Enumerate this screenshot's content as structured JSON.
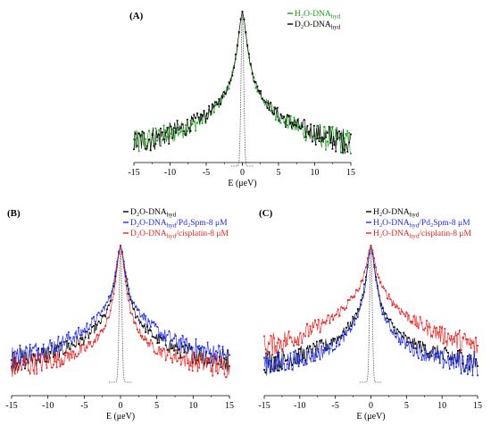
{
  "colors": {
    "black": "#000000",
    "green": "#1a9e1a",
    "blue": "#1f2be8",
    "red": "#e8231f",
    "resolution": "#555555"
  },
  "chart_data": [
    {
      "type": "scatter",
      "panel_label": "(A)",
      "xlabel": "E (μeV)",
      "ylabel": "",
      "xlim": [
        -15,
        15
      ],
      "x_ticks": [
        -15,
        -10,
        -5,
        0,
        5,
        10,
        15
      ],
      "x_tick_labels": [
        "-15",
        "-10",
        "-5",
        "0",
        "5",
        "10",
        "15"
      ],
      "grid": false,
      "legend_position": "top-right",
      "series": [
        {
          "name_main": "H₂O-DNA",
          "name_sub": "hyd",
          "color_key": "green",
          "points": [
            [
              -15,
              0.105
            ],
            [
              -12,
              0.135
            ],
            [
              -10,
              0.165
            ],
            [
              -8,
              0.205
            ],
            [
              -6,
              0.255
            ],
            [
              -5,
              0.29
            ],
            [
              -4,
              0.335
            ],
            [
              -3,
              0.395
            ],
            [
              -2,
              0.48
            ],
            [
              -1.5,
              0.55
            ],
            [
              -1,
              0.66
            ],
            [
              -0.7,
              0.76
            ],
            [
              -0.4,
              0.88
            ],
            [
              -0.2,
              0.96
            ],
            [
              0,
              1.0
            ],
            [
              0.2,
              0.96
            ],
            [
              0.4,
              0.88
            ],
            [
              0.7,
              0.76
            ],
            [
              1,
              0.66
            ],
            [
              1.5,
              0.55
            ],
            [
              2,
              0.48
            ],
            [
              3,
              0.395
            ],
            [
              4,
              0.335
            ],
            [
              5,
              0.29
            ],
            [
              6,
              0.255
            ],
            [
              8,
              0.205
            ],
            [
              10,
              0.165
            ],
            [
              12,
              0.135
            ],
            [
              15,
              0.105
            ]
          ]
        },
        {
          "name_main": "D₂O-DNA",
          "name_sub": "hyd",
          "color_key": "black",
          "points": [
            [
              -15,
              0.115
            ],
            [
              -12,
              0.145
            ],
            [
              -10,
              0.175
            ],
            [
              -8,
              0.215
            ],
            [
              -6,
              0.265
            ],
            [
              -5,
              0.3
            ],
            [
              -4,
              0.345
            ],
            [
              -3,
              0.405
            ],
            [
              -2,
              0.49
            ],
            [
              -1.5,
              0.56
            ],
            [
              -1,
              0.67
            ],
            [
              -0.7,
              0.77
            ],
            [
              -0.4,
              0.885
            ],
            [
              -0.2,
              0.96
            ],
            [
              0,
              1.0
            ],
            [
              0.2,
              0.96
            ],
            [
              0.4,
              0.885
            ],
            [
              0.7,
              0.77
            ],
            [
              1,
              0.67
            ],
            [
              1.5,
              0.56
            ],
            [
              2,
              0.49
            ],
            [
              3,
              0.405
            ],
            [
              4,
              0.345
            ],
            [
              5,
              0.3
            ],
            [
              6,
              0.265
            ],
            [
              8,
              0.215
            ],
            [
              10,
              0.175
            ],
            [
              12,
              0.145
            ],
            [
              15,
              0.115
            ]
          ]
        }
      ]
    },
    {
      "type": "scatter",
      "panel_label": "(B)",
      "xlabel": "E (μeV)",
      "ylabel": "",
      "xlim": [
        -15,
        15
      ],
      "x_ticks": [
        -15,
        -10,
        -5,
        0,
        5,
        10,
        15
      ],
      "x_tick_labels": [
        "-15",
        "-10",
        "-5",
        "0",
        "5",
        "10",
        "15"
      ],
      "grid": false,
      "legend_position": "top-right",
      "series": [
        {
          "name_main": "D₂O-DNA",
          "name_sub": "hyd",
          "name_rest": "",
          "color_key": "black",
          "points": [
            [
              -15,
              0.11
            ],
            [
              -12,
              0.14
            ],
            [
              -10,
              0.165
            ],
            [
              -8,
              0.2
            ],
            [
              -6,
              0.25
            ],
            [
              -5,
              0.285
            ],
            [
              -4,
              0.33
            ],
            [
              -3,
              0.39
            ],
            [
              -2,
              0.475
            ],
            [
              -1.5,
              0.55
            ],
            [
              -1,
              0.66
            ],
            [
              -0.7,
              0.76
            ],
            [
              -0.4,
              0.88
            ],
            [
              -0.2,
              0.96
            ],
            [
              0,
              1.0
            ],
            [
              0.2,
              0.96
            ],
            [
              0.4,
              0.88
            ],
            [
              0.7,
              0.76
            ],
            [
              1,
              0.66
            ],
            [
              1.5,
              0.55
            ],
            [
              2,
              0.475
            ],
            [
              3,
              0.39
            ],
            [
              4,
              0.33
            ],
            [
              5,
              0.285
            ],
            [
              6,
              0.25
            ],
            [
              8,
              0.2
            ],
            [
              10,
              0.165
            ],
            [
              12,
              0.14
            ],
            [
              15,
              0.11
            ]
          ]
        },
        {
          "name_main": "D₂O-DNA",
          "name_sub": "hyd",
          "name_rest": "/Pd₂Spm-8 μM",
          "color_key": "blue",
          "points": [
            [
              -15,
              0.145
            ],
            [
              -12,
              0.18
            ],
            [
              -10,
              0.21
            ],
            [
              -8,
              0.255
            ],
            [
              -6,
              0.31
            ],
            [
              -5,
              0.35
            ],
            [
              -4,
              0.4
            ],
            [
              -3,
              0.46
            ],
            [
              -2,
              0.54
            ],
            [
              -1.5,
              0.6
            ],
            [
              -1,
              0.7
            ],
            [
              -0.7,
              0.79
            ],
            [
              -0.4,
              0.9
            ],
            [
              -0.2,
              0.965
            ],
            [
              0,
              1.0
            ],
            [
              0.2,
              0.965
            ],
            [
              0.4,
              0.9
            ],
            [
              0.7,
              0.79
            ],
            [
              1,
              0.7
            ],
            [
              1.5,
              0.6
            ],
            [
              2,
              0.54
            ],
            [
              3,
              0.46
            ],
            [
              4,
              0.4
            ],
            [
              5,
              0.35
            ],
            [
              6,
              0.31
            ],
            [
              8,
              0.255
            ],
            [
              10,
              0.21
            ],
            [
              12,
              0.18
            ],
            [
              15,
              0.145
            ]
          ]
        },
        {
          "name_main": "D₂O-DNA",
          "name_sub": "hyd",
          "name_rest": "/cisplatin-8 μM",
          "color_key": "red",
          "points": [
            [
              -15,
              0.06
            ],
            [
              -12,
              0.085
            ],
            [
              -10,
              0.105
            ],
            [
              -8,
              0.135
            ],
            [
              -6,
              0.17
            ],
            [
              -5,
              0.2
            ],
            [
              -4,
              0.24
            ],
            [
              -3,
              0.3
            ],
            [
              -2,
              0.39
            ],
            [
              -1.5,
              0.47
            ],
            [
              -1,
              0.6
            ],
            [
              -0.7,
              0.72
            ],
            [
              -0.4,
              0.86
            ],
            [
              -0.2,
              0.95
            ],
            [
              0,
              1.0
            ],
            [
              0.2,
              0.95
            ],
            [
              0.4,
              0.86
            ],
            [
              0.7,
              0.72
            ],
            [
              1,
              0.6
            ],
            [
              1.5,
              0.47
            ],
            [
              2,
              0.39
            ],
            [
              3,
              0.3
            ],
            [
              4,
              0.24
            ],
            [
              5,
              0.2
            ],
            [
              6,
              0.17
            ],
            [
              8,
              0.135
            ],
            [
              10,
              0.105
            ],
            [
              12,
              0.085
            ],
            [
              15,
              0.06
            ]
          ]
        }
      ]
    },
    {
      "type": "scatter",
      "panel_label": "(C)",
      "xlabel": "E (μeV)",
      "ylabel": "",
      "xlim": [
        -15,
        15
      ],
      "x_ticks": [
        -15,
        -10,
        -5,
        0,
        5,
        10,
        15
      ],
      "x_tick_labels": [
        "-15",
        "-10",
        "-5",
        "0",
        "5",
        "10",
        "15"
      ],
      "grid": false,
      "legend_position": "top-right",
      "series": [
        {
          "name_main": "H₂O-DNA",
          "name_sub": "hyd",
          "name_rest": "",
          "color_key": "black",
          "points": [
            [
              -15,
              0.1
            ],
            [
              -12,
              0.125
            ],
            [
              -10,
              0.15
            ],
            [
              -8,
              0.19
            ],
            [
              -6,
              0.24
            ],
            [
              -5,
              0.275
            ],
            [
              -4,
              0.32
            ],
            [
              -3,
              0.385
            ],
            [
              -2,
              0.47
            ],
            [
              -1.5,
              0.545
            ],
            [
              -1,
              0.655
            ],
            [
              -0.7,
              0.755
            ],
            [
              -0.4,
              0.875
            ],
            [
              -0.2,
              0.955
            ],
            [
              0,
              1.0
            ],
            [
              0.2,
              0.955
            ],
            [
              0.4,
              0.875
            ],
            [
              0.7,
              0.755
            ],
            [
              1,
              0.655
            ],
            [
              1.5,
              0.545
            ],
            [
              2,
              0.47
            ],
            [
              3,
              0.385
            ],
            [
              4,
              0.32
            ],
            [
              5,
              0.275
            ],
            [
              6,
              0.24
            ],
            [
              8,
              0.19
            ],
            [
              10,
              0.15
            ],
            [
              12,
              0.125
            ],
            [
              15,
              0.1
            ]
          ]
        },
        {
          "name_main": "H₂O-DNA",
          "name_sub": "hyd",
          "name_rest": "/Pd₂Spm-8 μM",
          "color_key": "blue",
          "points": [
            [
              -15,
              0.08
            ],
            [
              -12,
              0.1
            ],
            [
              -10,
              0.12
            ],
            [
              -8,
              0.155
            ],
            [
              -6,
              0.2
            ],
            [
              -5,
              0.235
            ],
            [
              -4,
              0.28
            ],
            [
              -3,
              0.345
            ],
            [
              -2,
              0.435
            ],
            [
              -1.5,
              0.51
            ],
            [
              -1,
              0.625
            ],
            [
              -0.7,
              0.73
            ],
            [
              -0.4,
              0.86
            ],
            [
              -0.2,
              0.95
            ],
            [
              0,
              1.0
            ],
            [
              0.2,
              0.95
            ],
            [
              0.4,
              0.86
            ],
            [
              0.7,
              0.73
            ],
            [
              1,
              0.625
            ],
            [
              1.5,
              0.51
            ],
            [
              2,
              0.435
            ],
            [
              3,
              0.345
            ],
            [
              4,
              0.28
            ],
            [
              5,
              0.235
            ],
            [
              6,
              0.2
            ],
            [
              8,
              0.155
            ],
            [
              10,
              0.12
            ],
            [
              12,
              0.1
            ],
            [
              15,
              0.08
            ]
          ]
        },
        {
          "name_main": "H₂O-DNA",
          "name_sub": "hyd",
          "name_rest": "/cisplatin-8 μM",
          "color_key": "red",
          "points": [
            [
              -15,
              0.22
            ],
            [
              -12,
              0.27
            ],
            [
              -10,
              0.31
            ],
            [
              -8,
              0.36
            ],
            [
              -6,
              0.42
            ],
            [
              -5,
              0.46
            ],
            [
              -4,
              0.51
            ],
            [
              -3,
              0.57
            ],
            [
              -2,
              0.64
            ],
            [
              -1.5,
              0.69
            ],
            [
              -1,
              0.76
            ],
            [
              -0.7,
              0.83
            ],
            [
              -0.4,
              0.92
            ],
            [
              -0.2,
              0.97
            ],
            [
              0,
              1.0
            ],
            [
              0.2,
              0.97
            ],
            [
              0.4,
              0.92
            ],
            [
              0.7,
              0.83
            ],
            [
              1,
              0.76
            ],
            [
              1.5,
              0.69
            ],
            [
              2,
              0.64
            ],
            [
              3,
              0.57
            ],
            [
              4,
              0.51
            ],
            [
              5,
              0.46
            ],
            [
              6,
              0.42
            ],
            [
              8,
              0.36
            ],
            [
              10,
              0.31
            ],
            [
              12,
              0.27
            ],
            [
              15,
              0.22
            ]
          ]
        }
      ]
    }
  ]
}
